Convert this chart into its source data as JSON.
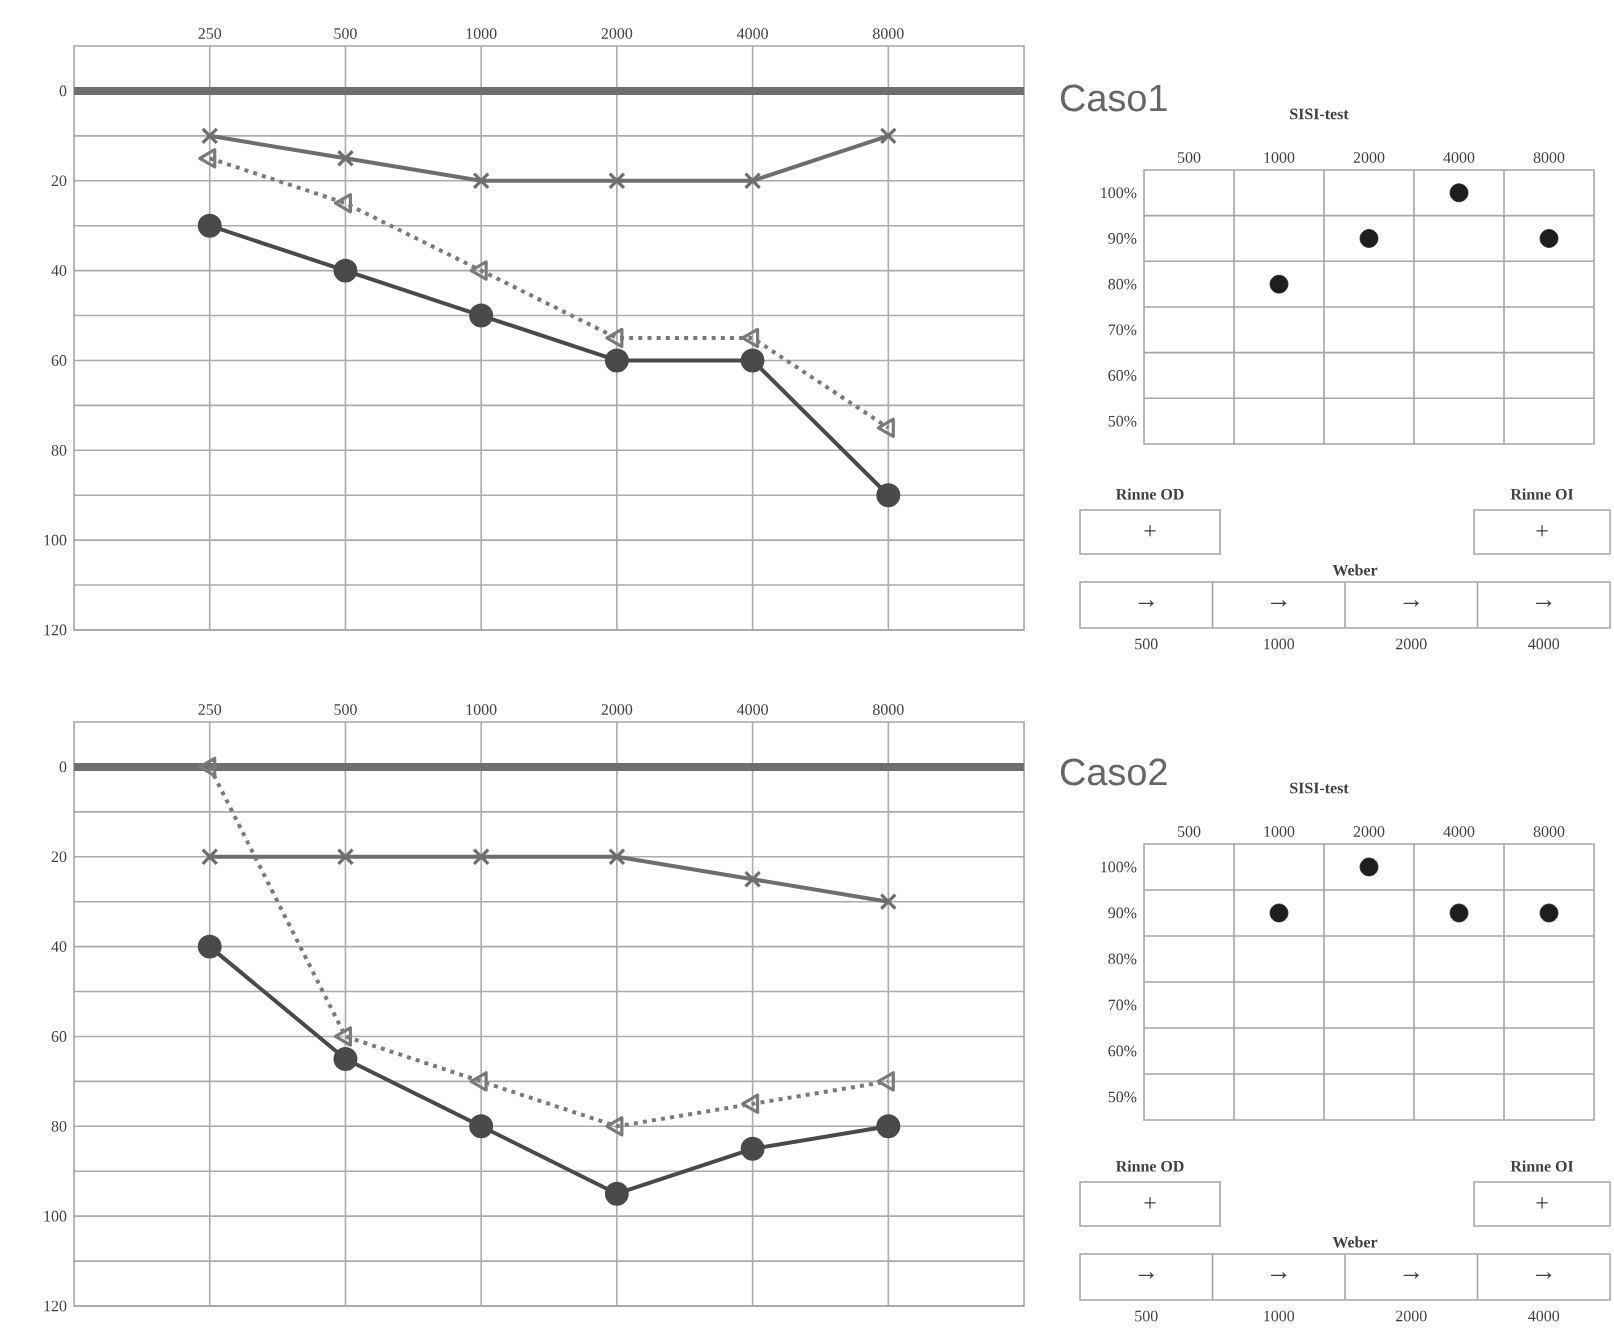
{
  "chart_data": [
    {
      "type": "line",
      "x": [
        250,
        500,
        1000,
        2000,
        4000,
        8000
      ],
      "log": "x",
      "xlim": [
        125,
        16000
      ],
      "xticks": [
        250,
        500,
        1000,
        2000,
        4000,
        8000
      ],
      "ylim": [
        120,
        -10
      ],
      "yticks": [
        0,
        {
          "value": 10,
          "label": null
        },
        20,
        {
          "value": 30,
          "label": null
        },
        40,
        {
          "value": 50,
          "label": null
        },
        60,
        {
          "value": 70,
          "label": null
        },
        80,
        {
          "value": 90,
          "label": null
        },
        100,
        {
          "value": 110,
          "label": null
        },
        120
      ],
      "grid": true,
      "ref_lines": [
        {
          "axis": "y",
          "value": 0,
          "color": "#6e6e6e"
        }
      ],
      "series": [
        {
          "color": "#6e6e6e",
          "marker": "cross",
          "line_style": "solid",
          "values": [
            10,
            15,
            20,
            20,
            20,
            10
          ]
        },
        {
          "color": "#4a4a4a",
          "marker": "circle",
          "line_style": "solid",
          "values": [
            30,
            40,
            50,
            60,
            60,
            90
          ]
        },
        {
          "color": "#7a7a7a",
          "marker": "triangle",
          "line_style": "dotted",
          "values": [
            15,
            25,
            40,
            55,
            55,
            75
          ]
        }
      ]
    },
    {
      "type": "scatter",
      "title": "Caso1",
      "subtitle": "SISI-test",
      "categories": [
        "500",
        "1000",
        "2000",
        "4000",
        "8000"
      ],
      "ylim": [
        45,
        105
      ],
      "yticks": [
        {
          "value": 50,
          "label": "50%"
        },
        {
          "value": 55,
          "label": null
        },
        {
          "value": 60,
          "label": "60%"
        },
        {
          "value": 65,
          "label": null
        },
        {
          "value": 70,
          "label": "70%"
        },
        {
          "value": 75,
          "label": null
        },
        {
          "value": 80,
          "label": "80%"
        },
        {
          "value": 85,
          "label": null
        },
        {
          "value": 90,
          "label": "90%"
        },
        {
          "value": 95,
          "label": null
        },
        {
          "value": 100,
          "label": "100%"
        }
      ],
      "grid": true,
      "marker": "circle",
      "series": [
        {
          "color": "#1e1e1e",
          "values": [
            null,
            80,
            90,
            100,
            90
          ]
        }
      ]
    },
    {
      "type": "other",
      "annotations": [
        "Rinne OD",
        "+",
        "Rinne OI",
        "+",
        "Weber",
        "→",
        "→",
        "→",
        "→"
      ],
      "categories": [
        "500",
        "1000",
        "2000",
        "4000"
      ]
    },
    {
      "type": "line",
      "x": [
        250,
        500,
        1000,
        2000,
        4000,
        8000
      ],
      "log": "x",
      "xlim": [
        125,
        16000
      ],
      "xticks": [
        250,
        500,
        1000,
        2000,
        4000,
        8000
      ],
      "ylim": [
        120,
        -10
      ],
      "yticks": [
        0,
        {
          "value": 10,
          "label": null
        },
        20,
        {
          "value": 30,
          "label": null
        },
        40,
        {
          "value": 50,
          "label": null
        },
        60,
        {
          "value": 70,
          "label": null
        },
        80,
        {
          "value": 90,
          "label": null
        },
        100,
        {
          "value": 110,
          "label": null
        },
        120
      ],
      "grid": true,
      "ref_lines": [
        {
          "axis": "y",
          "value": 0,
          "color": "#6e6e6e"
        }
      ],
      "series": [
        {
          "color": "#6e6e6e",
          "marker": "cross",
          "line_style": "solid",
          "values": [
            20,
            20,
            20,
            20,
            25,
            30
          ]
        },
        {
          "color": "#4a4a4a",
          "marker": "circle",
          "line_style": "solid",
          "values": [
            40,
            65,
            80,
            95,
            85,
            80
          ]
        },
        {
          "color": "#7a7a7a",
          "marker": "triangle",
          "line_style": "dotted",
          "values": [
            0,
            60,
            70,
            80,
            75,
            70
          ]
        }
      ]
    },
    {
      "type": "scatter",
      "title": "Caso2",
      "subtitle": "SISI-test",
      "categories": [
        "500",
        "1000",
        "2000",
        "4000",
        "8000"
      ],
      "ylim": [
        45,
        105
      ],
      "yticks": [
        {
          "value": 50,
          "label": "50%"
        },
        {
          "value": 55,
          "label": null
        },
        {
          "value": 60,
          "label": "60%"
        },
        {
          "value": 65,
          "label": null
        },
        {
          "value": 70,
          "label": "70%"
        },
        {
          "value": 75,
          "label": null
        },
        {
          "value": 80,
          "label": "80%"
        },
        {
          "value": 85,
          "label": null
        },
        {
          "value": 90,
          "label": "90%"
        },
        {
          "value": 95,
          "label": null
        },
        {
          "value": 100,
          "label": "100%"
        }
      ],
      "grid": true,
      "marker": "circle",
      "series": [
        {
          "color": "#1e1e1e",
          "values": [
            null,
            90,
            100,
            90,
            90
          ]
        }
      ]
    },
    {
      "type": "other",
      "annotations": [
        "Rinne OD",
        "+",
        "Rinne OI",
        "+",
        "Weber",
        "→",
        "→",
        "→",
        "→"
      ],
      "categories": [
        "500",
        "1000",
        "2000",
        "4000"
      ]
    }
  ]
}
